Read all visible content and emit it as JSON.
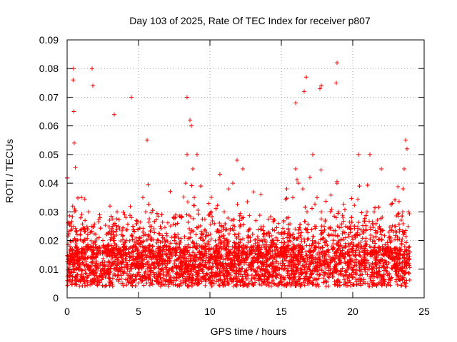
{
  "chart_data": {
    "type": "scatter",
    "title": "Day 103 of 2025, Rate Of TEC Index for receiver p807",
    "xlabel": "GPS time / hours",
    "ylabel": "ROTI / TECUs",
    "xlim": [
      0,
      25
    ],
    "ylim": [
      0,
      0.09
    ],
    "x_ticks": [
      "0",
      "5",
      "10",
      "15",
      "20",
      "25"
    ],
    "y_ticks": [
      "0",
      "0.01",
      "0.02",
      "0.03",
      "0.04",
      "0.05",
      "0.06",
      "0.07",
      "0.08",
      "0.09"
    ],
    "grid": true,
    "marker": "+",
    "marker_color": "#ff0000",
    "series": [
      {
        "x": [
          0.1,
          0.2,
          0.3,
          0.4,
          0.5,
          0.6,
          0.7,
          0.8,
          1.0,
          1.2,
          1.3,
          1.5,
          1.7,
          1.8,
          2.0,
          2.3,
          2.5,
          2.7,
          3.0,
          3.2,
          3.3,
          3.5,
          3.8,
          4.0,
          4.2,
          4.5,
          4.6,
          5.0,
          5.3,
          5.5,
          5.7,
          6.0,
          6.3,
          6.5,
          7.0,
          7.5,
          8.0,
          8.3,
          8.4,
          8.6,
          8.8,
          8.9,
          9.2,
          9.5,
          10.0,
          10.5,
          11.0,
          11.3,
          11.6,
          11.8,
          12.0,
          12.5,
          13.0,
          13.5,
          14.0,
          14.5,
          15.0,
          15.5,
          15.8,
          16.0,
          16.2,
          16.5,
          16.8,
          17.0,
          17.2,
          17.5,
          17.8,
          18.0,
          18.5,
          18.9,
          19.0,
          19.5,
          20.0,
          20.5,
          21.0,
          21.2,
          21.5,
          22.0,
          22.5,
          23.0,
          23.5,
          23.6,
          23.8,
          23.9,
          0.5,
          1.8,
          3.3,
          4.5,
          8.4,
          8.7,
          16.0,
          16.6,
          17.8,
          18.9,
          0.45,
          1.75,
          16.75,
          17.7,
          18.85,
          0.42,
          0.47,
          5.6,
          9.1,
          11.9,
          12.3,
          20.4,
          22.0,
          23.7
        ],
        "y": [
          0.012,
          0.018,
          0.025,
          0.02,
          0.03,
          0.015,
          0.022,
          0.012,
          0.035,
          0.02,
          0.018,
          0.03,
          0.025,
          0.015,
          0.012,
          0.028,
          0.02,
          0.018,
          0.032,
          0.025,
          0.02,
          0.03,
          0.022,
          0.018,
          0.015,
          0.028,
          0.025,
          0.02,
          0.035,
          0.03,
          0.022,
          0.018,
          0.014,
          0.016,
          0.012,
          0.02,
          0.028,
          0.04,
          0.05,
          0.062,
          0.045,
          0.035,
          0.025,
          0.02,
          0.015,
          0.018,
          0.03,
          0.038,
          0.04,
          0.022,
          0.018,
          0.015,
          0.012,
          0.02,
          0.015,
          0.018,
          0.022,
          0.028,
          0.035,
          0.045,
          0.04,
          0.038,
          0.03,
          0.042,
          0.05,
          0.035,
          0.03,
          0.025,
          0.022,
          0.04,
          0.03,
          0.025,
          0.018,
          0.022,
          0.03,
          0.05,
          0.03,
          0.022,
          0.018,
          0.025,
          0.03,
          0.045,
          0.052,
          0.03,
          0.054,
          0.074,
          0.064,
          0.07,
          0.07,
          0.06,
          0.068,
          0.072,
          0.074,
          0.082,
          0.08,
          0.08,
          0.077,
          0.073,
          0.075,
          0.076,
          0.065,
          0.055,
          0.05,
          0.048,
          0.045,
          0.05,
          0.045,
          0.055
        ]
      }
    ]
  }
}
